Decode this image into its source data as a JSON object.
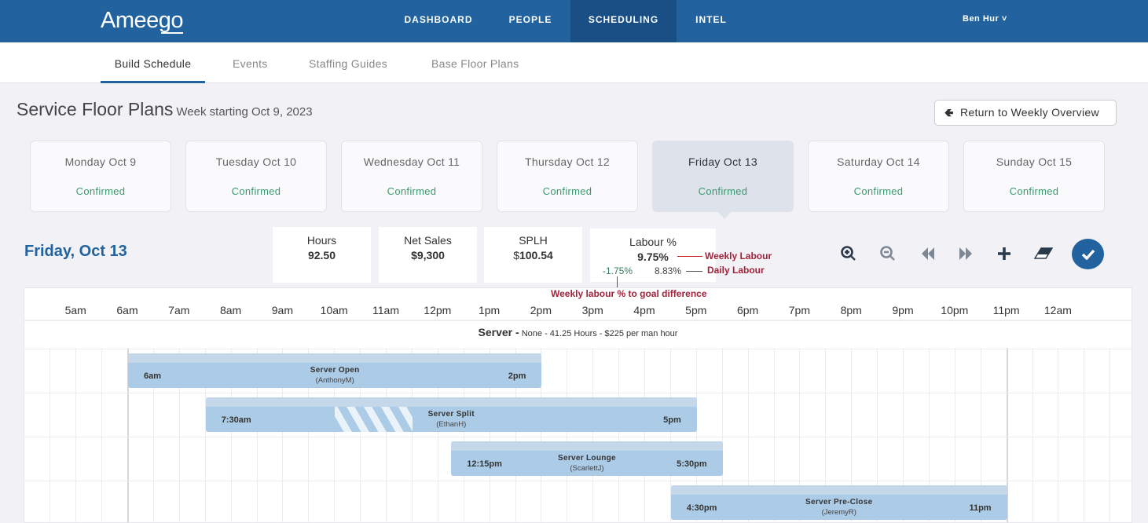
{
  "app": {
    "logo": "Ameego",
    "user": "Ben Hur ˅"
  },
  "nav": [
    {
      "label": "DASHBOARD"
    },
    {
      "label": "PEOPLE"
    },
    {
      "label": "SCHEDULING"
    },
    {
      "label": "INTEL"
    }
  ],
  "subnav": [
    {
      "label": "Build Schedule"
    },
    {
      "label": "Events"
    },
    {
      "label": "Staffing Guides"
    },
    {
      "label": "Base Floor Plans"
    }
  ],
  "page": {
    "title": "Service Floor Plans",
    "subtitle": "Week starting Oct 9, 2023",
    "return_label": "Return to Weekly Overview"
  },
  "days": [
    {
      "name": "Monday Oct 9",
      "status": "Confirmed"
    },
    {
      "name": "Tuesday Oct 10",
      "status": "Confirmed"
    },
    {
      "name": "Wednesday Oct 11",
      "status": "Confirmed"
    },
    {
      "name": "Thursday Oct 12",
      "status": "Confirmed"
    },
    {
      "name": "Friday Oct 13",
      "status": "Confirmed"
    },
    {
      "name": "Saturday Oct 14",
      "status": "Confirmed"
    },
    {
      "name": "Sunday Oct 15",
      "status": "Confirmed"
    }
  ],
  "day_heading": "Friday, Oct 13",
  "stats": {
    "hours_label": "Hours",
    "hours": "92.50",
    "sales_label": "Net Sales",
    "sales": "$9,300",
    "splh_label": "SPLH",
    "splh_prefix": "$",
    "splh": "100.54",
    "labour_label": "Labour %",
    "labour": "9.75%",
    "diff": "-1.75%",
    "daily": "8.83%"
  },
  "annotations": {
    "weekly": "Weekly Labour",
    "daily": "Daily Labour",
    "diff": "Weekly labour % to goal difference"
  },
  "hours": [
    "5am",
    "6am",
    "7am",
    "8am",
    "9am",
    "10am",
    "11am",
    "12pm",
    "1pm",
    "2pm",
    "3pm",
    "4pm",
    "5pm",
    "6pm",
    "7pm",
    "8pm",
    "9pm",
    "10pm",
    "11pm",
    "12am"
  ],
  "group": {
    "name": "Server -",
    "detail": "None - 41.25 Hours - $225 per man hour"
  },
  "shifts": [
    {
      "name": "Server Open",
      "employee": "(AnthonyM)",
      "start": "6am",
      "end": "2pm",
      "start_h": 6,
      "end_h": 14
    },
    {
      "name": "Server Split",
      "employee": "(EthanH)",
      "start": "7:30am",
      "end": "5pm",
      "start_h": 7.5,
      "end_h": 17,
      "break_start_h": 10,
      "break_end_h": 11.5
    },
    {
      "name": "Server Lounge",
      "employee": "(ScarlettJ)",
      "start": "12:15pm",
      "end": "5:30pm",
      "start_h": 12.25,
      "end_h": 17.5
    },
    {
      "name": "Server Pre-Close",
      "employee": "(JeremyR)",
      "start": "4:30pm",
      "end": "11pm",
      "start_h": 16.5,
      "end_h": 23
    }
  ],
  "colors": {
    "brand": "#22639f",
    "confirmed": "#3a9a6e",
    "annotation": "#a3223b"
  }
}
